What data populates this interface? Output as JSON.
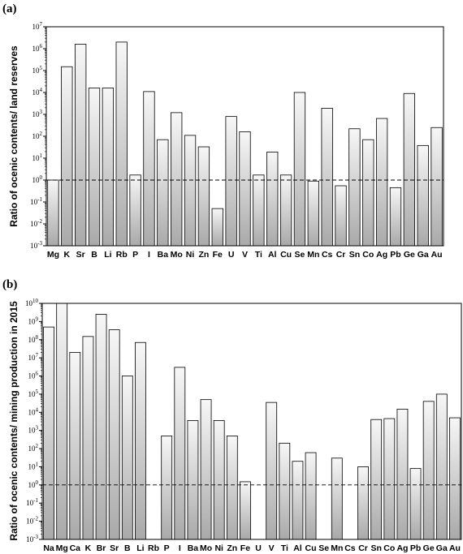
{
  "chart_data": [
    {
      "panel": "(a)",
      "type": "bar",
      "ylabel": "Ratio of ocenic contents/ land reserves",
      "yscale": "log",
      "ylim": [
        0.001,
        10000000.0
      ],
      "yticks": [
        "10-3",
        "10-2",
        "10-1",
        "100",
        "101",
        "102",
        "103",
        "104",
        "105",
        "106",
        "107"
      ],
      "reference_line": 1,
      "reference_style": "dashed",
      "categories": [
        "Mg",
        "K",
        "Sr",
        "B",
        "Li",
        "Rb",
        "P",
        "I",
        "Ba",
        "Mo",
        "Ni",
        "Zn",
        "Fe",
        "U",
        "V",
        "Ti",
        "Al",
        "Cu",
        "Se",
        "Mn",
        "Cs",
        "Cr",
        "Sn",
        "Co",
        "Ag",
        "Pb",
        "Ge",
        "Ga",
        "Au"
      ],
      "values": [
        1,
        150000,
        1600000,
        16000,
        16000,
        2000000,
        1.7,
        11000,
        70,
        1200,
        110,
        33,
        0.05,
        800,
        160,
        1.7,
        19,
        1.7,
        10000,
        0.9,
        1900,
        0.55,
        220,
        70,
        650,
        0.45,
        9000,
        38,
        250
      ]
    },
    {
      "panel": "(b)",
      "type": "bar",
      "ylabel": "Ratio of ocenic contents/ mining production in 2015",
      "yscale": "log",
      "ylim": [
        0.001,
        10000000000.0
      ],
      "yticks": [
        "10-3",
        "10-2",
        "10-1",
        "100",
        "101",
        "102",
        "103",
        "104",
        "105",
        "106",
        "107",
        "108",
        "109",
        "1010"
      ],
      "reference_line": 1,
      "reference_style": "dashed",
      "categories": [
        "Na",
        "Mg",
        "Ca",
        "K",
        "Br",
        "Sr",
        "B",
        "Li",
        "Rb",
        "P",
        "I",
        "Ba",
        "Mo",
        "Ni",
        "Zn",
        "Fe",
        "U",
        "V",
        "Ti",
        "Al",
        "Cu",
        "Se",
        "Mn",
        "Cs",
        "Cr",
        "Sn",
        "Co",
        "Ag",
        "Pb",
        "Ge",
        "Ga",
        "Au"
      ],
      "values": [
        500000000,
        20000000000,
        20000000,
        150000000,
        2500000000,
        350000000,
        1000000,
        70000000,
        null,
        500,
        3000000,
        3500,
        50000,
        3500,
        500,
        1.5,
        null,
        35000,
        200,
        20,
        60,
        null,
        30,
        null,
        10,
        4000,
        4500,
        15000,
        8,
        40000,
        100000,
        5000
      ]
    }
  ]
}
